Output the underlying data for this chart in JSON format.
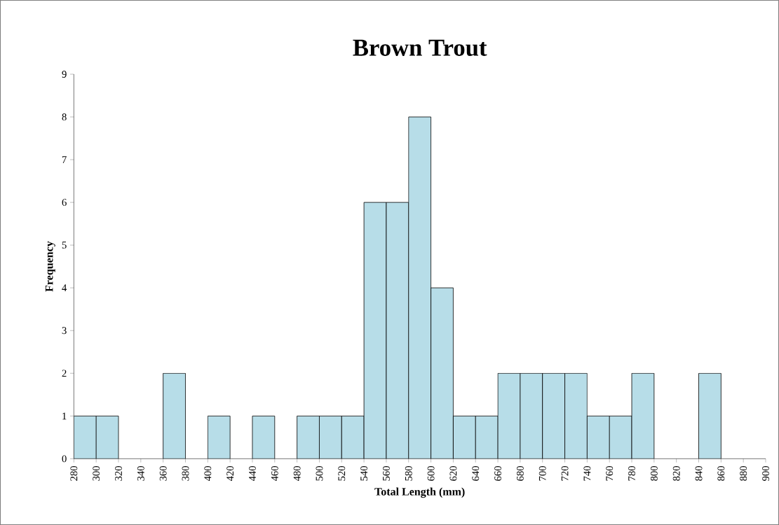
{
  "chart_data": {
    "type": "histogram",
    "title": "Brown Trout",
    "xlabel": "Total Length (mm)",
    "ylabel": "Frequency",
    "bins": [
      280,
      300,
      320,
      340,
      360,
      380,
      400,
      420,
      440,
      460,
      480,
      500,
      520,
      540,
      560,
      580,
      600,
      620,
      640,
      660,
      680,
      700,
      720,
      740,
      760,
      780,
      800,
      820,
      840,
      860,
      880,
      900
    ],
    "values": [
      1,
      1,
      0,
      0,
      2,
      0,
      1,
      0,
      1,
      0,
      1,
      1,
      1,
      6,
      6,
      8,
      4,
      1,
      1,
      2,
      2,
      2,
      2,
      1,
      1,
      2,
      0,
      0,
      2,
      0,
      0
    ],
    "color": "#b7dde8",
    "xlim": [
      280,
      900
    ],
    "ylim": [
      0,
      9
    ],
    "xticks": [
      280,
      300,
      320,
      340,
      360,
      380,
      400,
      420,
      440,
      460,
      480,
      500,
      520,
      540,
      560,
      580,
      600,
      620,
      640,
      660,
      680,
      700,
      720,
      740,
      760,
      780,
      800,
      820,
      840,
      860,
      880,
      900
    ],
    "yticks": [
      0,
      1,
      2,
      3,
      4,
      5,
      6,
      7,
      8,
      9
    ],
    "grid": false
  }
}
